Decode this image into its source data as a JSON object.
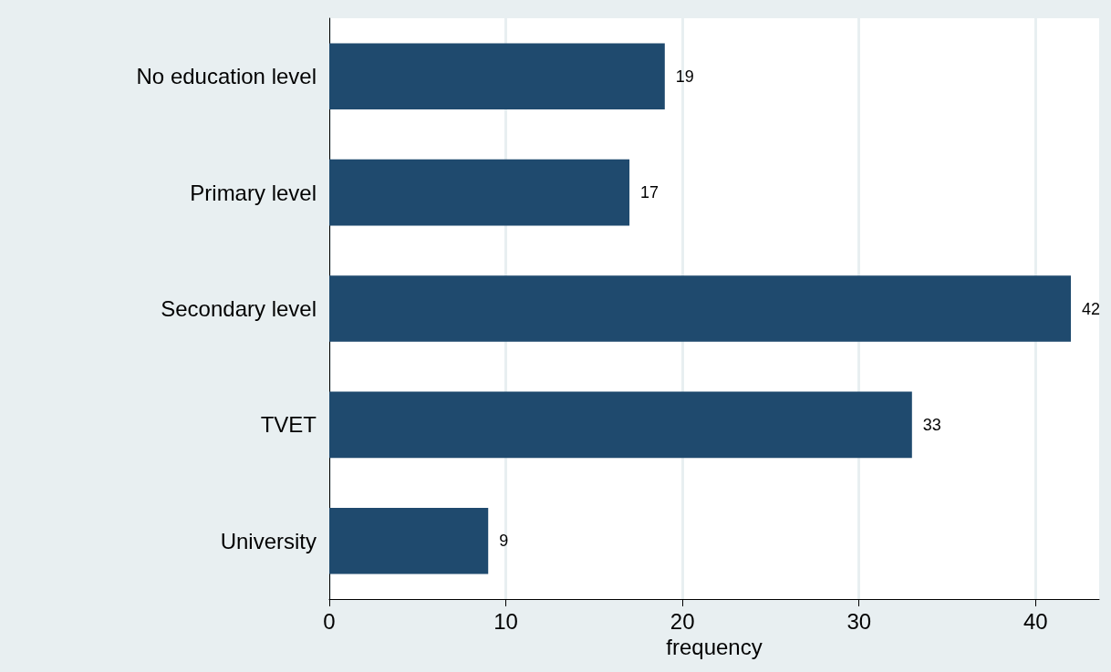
{
  "chart_data": {
    "type": "bar",
    "orientation": "horizontal",
    "xlabel": "frequency",
    "categories": [
      "No education level",
      "Primary level",
      "Secondary level",
      "TVET",
      "University"
    ],
    "values": [
      19,
      17,
      42,
      33,
      9
    ],
    "color": "#1f4a6e",
    "xlim": [
      0,
      43.6
    ],
    "xticks": [
      0,
      10,
      20,
      30,
      40
    ],
    "grid": "x",
    "data_labels": true
  }
}
